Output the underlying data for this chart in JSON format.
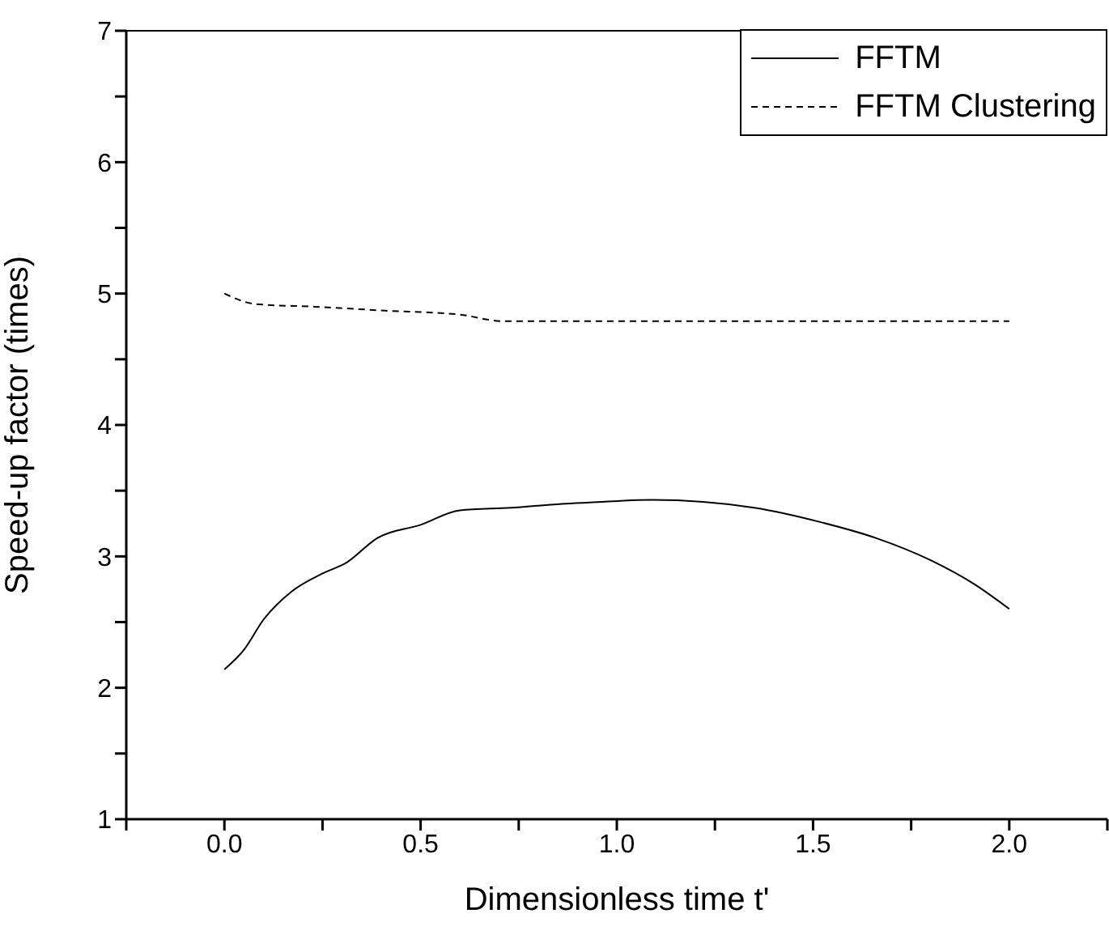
{
  "chart_data": {
    "type": "line",
    "xlabel": "Dimensionless time t'",
    "ylabel": "Speed-up factor (times)",
    "xlim": [
      -0.25,
      2.25
    ],
    "xticks": [
      {
        "value": -0.25,
        "label": null
      },
      {
        "value": 0,
        "label": "0.0"
      },
      {
        "value": 0.25,
        "label": null
      },
      {
        "value": 0.5,
        "label": "0.5"
      },
      {
        "value": 0.75,
        "label": null
      },
      {
        "value": 1,
        "label": "1.0"
      },
      {
        "value": 1.25,
        "label": null
      },
      {
        "value": 1.5,
        "label": "1.5"
      },
      {
        "value": 1.75,
        "label": null
      },
      {
        "value": 2,
        "label": "2.0"
      },
      {
        "value": 2.25,
        "label": null
      }
    ],
    "ylim": [
      1,
      7
    ],
    "yticks": [
      1,
      {
        "value": 1.5,
        "label": null
      },
      2,
      {
        "value": 2.5,
        "label": null
      },
      3,
      {
        "value": 3.5,
        "label": null
      },
      4,
      {
        "value": 4.5,
        "label": null
      },
      5,
      {
        "value": 5.5,
        "label": null
      },
      6,
      {
        "value": 6.5,
        "label": null
      },
      7
    ],
    "grid": false,
    "legend": "top right",
    "marker": "none",
    "series": [
      {
        "name": "FFTM",
        "color": "#000000",
        "line_style": "solid",
        "x": [
          0,
          0.05,
          0.1,
          0.17,
          0.25,
          0.31,
          0.39,
          0.5,
          0.6,
          0.73,
          0.86,
          0.93,
          1.09,
          1.35,
          1.52,
          1.66,
          1.8,
          1.91,
          2.0
        ],
        "values": [
          2.14,
          2.29,
          2.52,
          2.73,
          2.87,
          2.95,
          3.14,
          3.24,
          3.35,
          3.37,
          3.4,
          3.41,
          3.43,
          3.37,
          3.26,
          3.14,
          2.97,
          2.79,
          2.6
        ]
      },
      {
        "name": "FFTM Clustering",
        "color": "#000000",
        "line_style": "dashed",
        "x": [
          0,
          0.08,
          0.23,
          0.41,
          0.6,
          0.71,
          2.0
        ],
        "values": [
          5.0,
          4.92,
          4.9,
          4.87,
          4.84,
          4.79,
          4.79
        ]
      }
    ]
  }
}
